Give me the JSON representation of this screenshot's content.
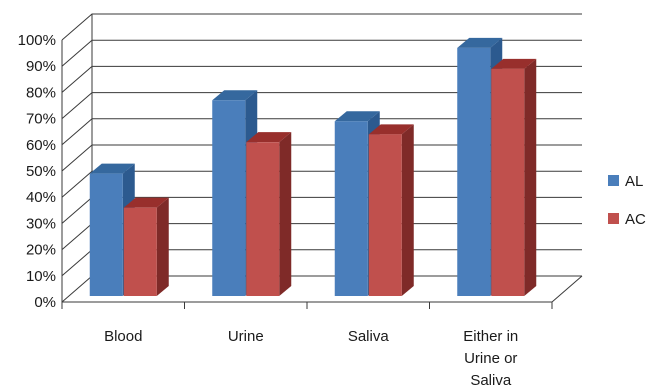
{
  "chart_data": {
    "type": "bar",
    "style": "3d-clustered-column",
    "categories": [
      [
        "Blood"
      ],
      [
        "Urine"
      ],
      [
        "Saliva"
      ],
      [
        "Either in",
        "Urine or",
        "Saliva"
      ]
    ],
    "series": [
      {
        "name": "AL",
        "values": [
          49,
          77,
          69,
          97
        ],
        "color": "#4a7ebb",
        "side_color": "#2c5a8f",
        "top_color": "#35689e"
      },
      {
        "name": "AC",
        "values": [
          36,
          61,
          64,
          89
        ],
        "color": "#c0504d",
        "side_color": "#7f2a28",
        "top_color": "#982f2c"
      }
    ],
    "y_ticks": [
      "0%",
      "10%",
      "20%",
      "30%",
      "40%",
      "50%",
      "60%",
      "70%",
      "80%",
      "90%",
      "100%"
    ],
    "ylim": [
      0,
      100
    ],
    "grid": true,
    "legend": "right"
  }
}
